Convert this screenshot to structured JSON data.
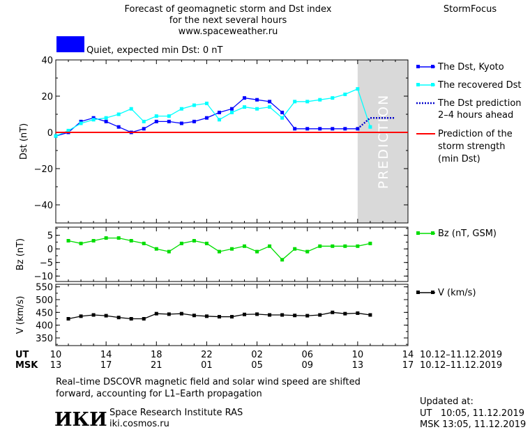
{
  "header": {
    "title_line1": "Forecast of geomagnetic storm and Dst index",
    "title_line2": "for the next several hours",
    "site": "www.spaceweather.ru",
    "brand": "StormFocus",
    "status_text": "Quiet, expected min Dst: 0 nT",
    "status_color": "#0000ff"
  },
  "legend": {
    "dst_kyoto": "The Dst, Kyoto",
    "recovered": "The recovered Dst",
    "prediction_line1": "The Dst prediction",
    "prediction_line2": "2–4 hours ahead",
    "storm_line1": "Prediction of the",
    "storm_line2": "storm strength",
    "storm_line3": "(min Dst)",
    "bz": "Bz (nT, GSM)",
    "v": "V (km/s)"
  },
  "axes": {
    "ut_label": "UT",
    "msk_label": "MSK",
    "ut_range": "10.12–11.12.2019",
    "msk_range": "10.12–11.12.2019",
    "ut_ticks": [
      "10",
      "14",
      "18",
      "22",
      "02",
      "06",
      "10",
      "14"
    ],
    "msk_ticks": [
      "13",
      "17",
      "21",
      "01",
      "05",
      "09",
      "13",
      "17"
    ],
    "prediction_label": "PREDICTION"
  },
  "footer": {
    "note_line1": "Real–time DSCOVR magnetic field and solar wind speed are shifted",
    "note_line2": "forward, accounting for L1–Earth propagation",
    "logo_text": "ИКИ",
    "institute": "Space Research Institute RAS",
    "institute_url": "iki.cosmos.ru",
    "updated_label": "Updated at:",
    "updated_ut": "UT   10:05, 11.12.2019",
    "updated_msk": "MSK 13:05, 11.12.2019"
  },
  "chart_data": [
    {
      "type": "line",
      "ylabel": "Dst (nT)",
      "ylim": [
        -50,
        40
      ],
      "yticks": [
        -40,
        -20,
        0,
        20,
        40
      ],
      "x_unit": "hours since 10 UT, 10.12.2019",
      "xlim": [
        0,
        28
      ],
      "series": [
        {
          "name": "The Dst, Kyoto",
          "color": "#0000ff",
          "x": [
            0,
            1,
            2,
            3,
            4,
            5,
            6,
            7,
            8,
            9,
            10,
            11,
            12,
            13,
            14,
            15,
            16,
            17,
            18,
            19,
            20,
            21,
            22,
            23,
            24
          ],
          "values": [
            -2,
            0,
            6,
            8,
            6,
            3,
            0,
            2,
            6,
            6,
            5,
            6,
            8,
            11,
            13,
            19,
            18,
            17,
            11,
            2,
            2,
            2,
            2,
            2,
            2
          ]
        },
        {
          "name": "The recovered Dst",
          "color": "#00ffff",
          "x": [
            0,
            1,
            2,
            3,
            4,
            5,
            6,
            7,
            8,
            9,
            10,
            11,
            12,
            13,
            14,
            15,
            16,
            17,
            18,
            19,
            20,
            21,
            22,
            23,
            24,
            25
          ],
          "values": [
            -2,
            1,
            5,
            7,
            8,
            10,
            13,
            6,
            9,
            9,
            13,
            15,
            16,
            7,
            11,
            14,
            13,
            14,
            8,
            17,
            17,
            18,
            19,
            21,
            24,
            3
          ]
        },
        {
          "name": "The Dst prediction 2–4 hours ahead",
          "color": "#0000cc",
          "x": [
            24,
            25,
            26,
            27
          ],
          "values": [
            2,
            8,
            8,
            8
          ]
        },
        {
          "name": "Prediction of the storm strength (min Dst)",
          "color": "#ff0000",
          "x": [
            0,
            28
          ],
          "values": [
            0,
            0
          ]
        }
      ],
      "prediction_region": [
        24,
        28
      ]
    },
    {
      "type": "line",
      "ylabel": "Bz (nT)",
      "ylim": [
        -12,
        8
      ],
      "yticks": [
        -10,
        -5,
        0,
        5
      ],
      "series": [
        {
          "name": "Bz (nT, GSM)",
          "color": "#00dd00",
          "x": [
            1,
            2,
            3,
            4,
            5,
            6,
            7,
            8,
            9,
            10,
            11,
            12,
            13,
            14,
            15,
            16,
            17,
            18,
            19,
            20,
            21,
            22,
            23,
            24,
            25
          ],
          "values": [
            3,
            2,
            3,
            4,
            4,
            3,
            2,
            0,
            -1,
            2,
            3,
            2,
            -1,
            0,
            1,
            -1,
            1,
            -4,
            0,
            -1,
            1,
            1,
            1,
            1,
            2
          ]
        }
      ]
    },
    {
      "type": "line",
      "ylabel": "V (km/s)",
      "ylim": [
        320,
        560
      ],
      "yticks": [
        350,
        400,
        450,
        500,
        550
      ],
      "series": [
        {
          "name": "V (km/s)",
          "color": "#000000",
          "x": [
            1,
            2,
            3,
            4,
            5,
            6,
            7,
            8,
            9,
            10,
            11,
            12,
            13,
            14,
            15,
            16,
            17,
            18,
            19,
            20,
            21,
            22,
            23,
            24,
            25
          ],
          "values": [
            425,
            435,
            440,
            437,
            430,
            425,
            425,
            445,
            443,
            445,
            438,
            435,
            433,
            433,
            442,
            443,
            440,
            440,
            438,
            437,
            440,
            450,
            445,
            447,
            440
          ]
        }
      ]
    }
  ]
}
